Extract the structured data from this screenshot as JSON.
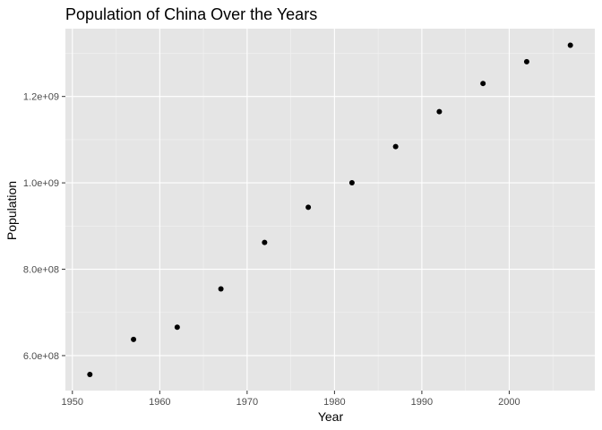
{
  "chart_data": {
    "type": "scatter",
    "title": "Population of China Over the Years",
    "xlabel": "Year",
    "ylabel": "Population",
    "xlim": [
      1949.2,
      2009.8
    ],
    "ylim": [
      519000000,
      1357000000
    ],
    "x_ticks": [
      1950,
      1960,
      1970,
      1980,
      1990,
      2000
    ],
    "x_tick_labels": [
      "1950",
      "1960",
      "1970",
      "1980",
      "1990",
      "2000"
    ],
    "y_ticks": [
      600000000,
      800000000,
      1000000000,
      1200000000
    ],
    "y_tick_labels": [
      "6.0e+08",
      "8.0e+08",
      "1.0e+09",
      "1.2e+09"
    ],
    "grid": true,
    "legend": "none",
    "series": [
      {
        "x": [
          1952,
          1957,
          1962,
          1967,
          1972,
          1977,
          1982,
          1987,
          1992,
          1997,
          2002,
          2007
        ],
        "y": [
          556263527,
          637408000,
          665770000,
          754550000,
          862030000,
          943455000,
          1000281000,
          1084035000,
          1164970000,
          1230075000,
          1280400000,
          1318683096
        ]
      }
    ]
  },
  "colors": {
    "panel_background": "#e5e5e5",
    "grid_major": "#ffffff",
    "point": "#000000"
  }
}
